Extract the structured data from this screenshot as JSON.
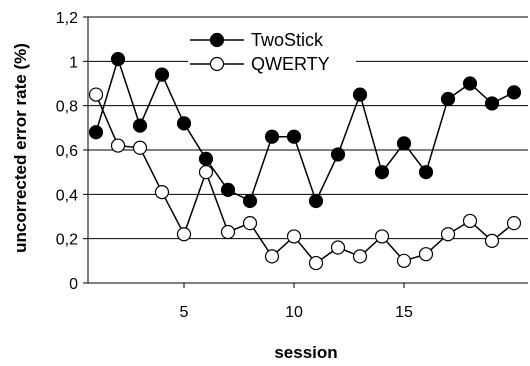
{
  "chart_data": {
    "type": "line",
    "xlabel": "session",
    "ylabel": "uncorrected error rate (%)",
    "xlim": [
      0,
      20
    ],
    "ylim": [
      0,
      1.2
    ],
    "x_ticks": [
      "5",
      "10",
      "15"
    ],
    "y_ticks": [
      "0",
      "0,2",
      "0,4",
      "0,6",
      "0,8",
      "1",
      "1,2"
    ],
    "grid": "horizontal",
    "legend_position": "top-center",
    "x": [
      1,
      2,
      3,
      4,
      5,
      6,
      7,
      8,
      9,
      10,
      11,
      12,
      13,
      14,
      15,
      16,
      17,
      18,
      19,
      20
    ],
    "series": [
      {
        "name": "TwoStick",
        "marker": "filled-circle",
        "color": "#000000",
        "values": [
          0.68,
          1.01,
          0.71,
          0.94,
          0.72,
          0.56,
          0.42,
          0.37,
          0.66,
          0.66,
          0.37,
          0.58,
          0.85,
          0.5,
          0.63,
          0.5,
          0.83,
          0.9,
          0.81,
          0.86
        ]
      },
      {
        "name": "QWERTY",
        "marker": "open-circle",
        "color": "#000000",
        "values": [
          0.85,
          0.62,
          0.61,
          0.41,
          0.22,
          0.5,
          0.23,
          0.27,
          0.12,
          0.21,
          0.09,
          0.16,
          0.12,
          0.21,
          0.1,
          0.13,
          0.22,
          0.28,
          0.19,
          0.27
        ]
      }
    ]
  }
}
